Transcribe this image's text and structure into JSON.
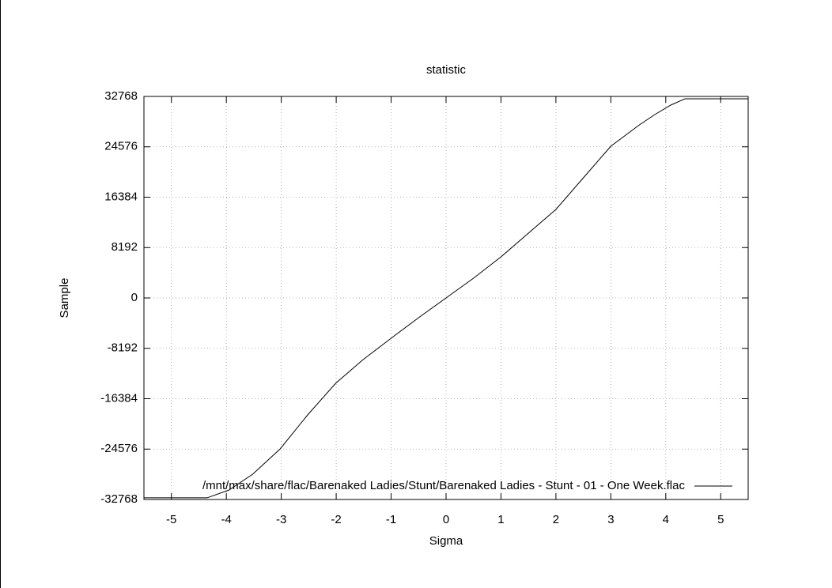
{
  "chart_data": {
    "type": "line",
    "title": "statistic",
    "x_label": "Sigma",
    "y_label": "Sample",
    "x": [
      -5.5,
      -4.35,
      -3.95,
      -3.52,
      -3.02,
      -2.52,
      -2.01,
      -1.51,
      -1.0,
      -0.5,
      0,
      0.5,
      1.0,
      1.5,
      2.0,
      2.5,
      3.0,
      3.52,
      3.8,
      4.09,
      4.35,
      5.5
    ],
    "series": [
      {
        "name": "/mnt/max/share/flac/Barenaked Ladies/Stunt/Barenaked Ladies - Stunt - 01 - One Week.flac",
        "color": "#000000",
        "values": [
          -32500,
          -32500,
          -31225,
          -28655,
          -24544,
          -19019,
          -13878,
          -10023,
          -6554,
          -3213,
          0,
          3213,
          6682,
          10537,
          14392,
          19532,
          24672,
          28142,
          29812,
          31354,
          32382,
          32382
        ]
      }
    ],
    "xlim": [
      -5.5,
      5.5
    ],
    "xticks": [
      -5,
      -4,
      -3,
      -2,
      -1,
      0,
      1,
      2,
      3,
      4,
      5
    ],
    "ylim": [
      -32768,
      32768
    ],
    "yticks": [
      -32768,
      -24576,
      -16384,
      -8192,
      0,
      8192,
      16384,
      24576,
      32768
    ],
    "grid": true,
    "legend": "bottom-right"
  }
}
